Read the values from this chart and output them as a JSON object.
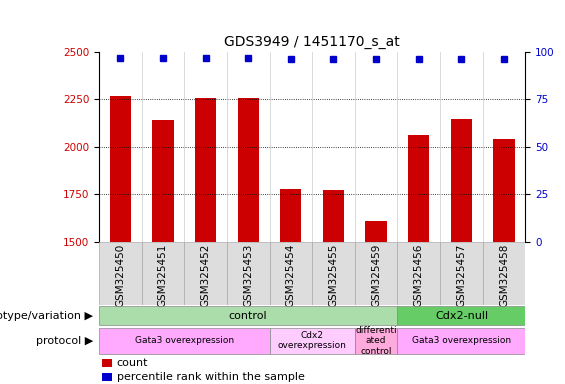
{
  "title": "GDS3949 / 1451170_s_at",
  "samples": [
    "GSM325450",
    "GSM325451",
    "GSM325452",
    "GSM325453",
    "GSM325454",
    "GSM325455",
    "GSM325459",
    "GSM325456",
    "GSM325457",
    "GSM325458"
  ],
  "counts": [
    2270,
    2140,
    2255,
    2258,
    1780,
    1775,
    1610,
    2065,
    2145,
    2040
  ],
  "percentile_ranks": [
    97,
    97,
    97,
    97,
    96,
    96,
    96,
    96,
    96,
    96
  ],
  "ylim_left": [
    1500,
    2500
  ],
  "ylim_right": [
    0,
    100
  ],
  "yticks_left": [
    1500,
    1750,
    2000,
    2250,
    2500
  ],
  "yticks_right": [
    0,
    25,
    50,
    75,
    100
  ],
  "bar_color": "#cc0000",
  "dot_color": "#0000cc",
  "bar_width": 0.5,
  "genotype_groups": [
    {
      "label": "control",
      "start": 0,
      "end": 7,
      "color": "#aaddaa"
    },
    {
      "label": "Cdx2-null",
      "start": 7,
      "end": 10,
      "color": "#66cc66"
    }
  ],
  "protocol_groups": [
    {
      "label": "Gata3 overexpression",
      "start": 0,
      "end": 4,
      "color": "#ffaaff"
    },
    {
      "label": "Cdx2\noverexpression",
      "start": 4,
      "end": 6,
      "color": "#ffccff"
    },
    {
      "label": "differenti\nated\ncontrol",
      "start": 6,
      "end": 7,
      "color": "#ffaadd"
    },
    {
      "label": "Gata3 overexpression",
      "start": 7,
      "end": 10,
      "color": "#ffaaff"
    }
  ],
  "legend_count_color": "#cc0000",
  "legend_dot_color": "#0000cc",
  "title_fontsize": 10,
  "tick_fontsize": 7.5,
  "label_fontsize": 8,
  "row_label_fontsize": 8
}
